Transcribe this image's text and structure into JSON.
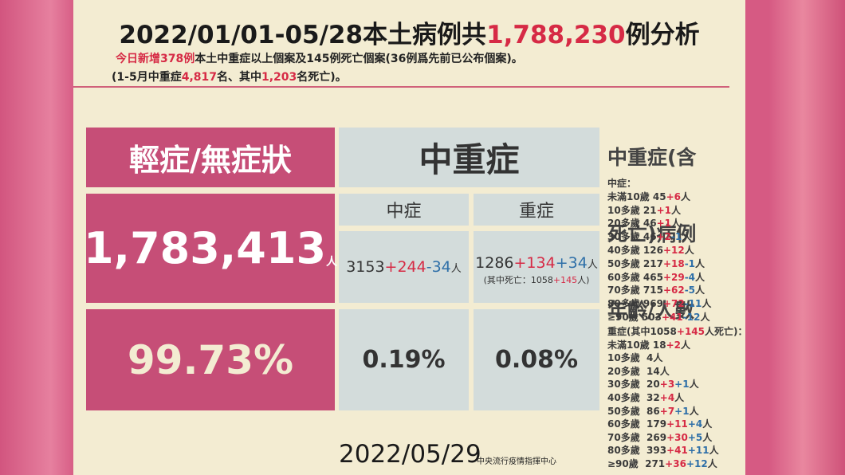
{
  "title": [
    {
      "text": "2022/01/01-05/28本土病例共"
    },
    {
      "text": "1,788,230",
      "color": "red"
    },
    {
      "text": "例分析"
    }
  ],
  "subtitle": [
    [
      {
        "text": "今日新增378例",
        "color": "red"
      },
      {
        "text": "本土中重症以上個案及145例死亡個案(36例爲先前已公布個案)。"
      }
    ],
    [
      {
        "text": "(1-5月中重症"
      },
      {
        "text": "4,817",
        "color": "red"
      },
      {
        "text": "名、其中"
      },
      {
        "text": "1,203",
        "color": "red"
      },
      {
        "text": "名死亡)。"
      }
    ]
  ],
  "table": {
    "mild_header": "輕症/無症狀",
    "mild_count": "1,783,413",
    "mild_unit": "人",
    "mild_pct": "99.73%",
    "severe_header": "中重症",
    "moderate_sub": "中症",
    "critical_sub": "重症",
    "moderate_count": [
      {
        "text": "3153"
      },
      {
        "text": "+244",
        "color": "red"
      },
      {
        "text": "-34",
        "color": "blue"
      },
      {
        "text": "人",
        "color": "small"
      }
    ],
    "critical_count": [
      {
        "text": "1286"
      },
      {
        "text": "+134",
        "color": "red"
      },
      {
        "text": "+34",
        "color": "blue"
      },
      {
        "text": "人",
        "color": "small"
      }
    ],
    "critical_note": [
      {
        "text": "(其中死亡：1058"
      },
      {
        "text": "+145",
        "color": "red"
      },
      {
        "text": "人)"
      }
    ],
    "moderate_pct": "0.19%",
    "critical_pct": "0.08%"
  },
  "side": {
    "heading": [
      "中重症(含",
      "死亡)病例",
      "年齡/人數"
    ],
    "moderate_label": [
      {
        "text": "中症："
      }
    ],
    "moderate_rows": [
      [
        {
          "text": "未滿10歲 45"
        },
        {
          "text": "+6",
          "color": "red"
        },
        {
          "text": "人"
        }
      ],
      [
        {
          "text": "10多歲 21"
        },
        {
          "text": "+1",
          "color": "red"
        },
        {
          "text": "人"
        }
      ],
      [
        {
          "text": "20多歲 46"
        },
        {
          "text": "+1",
          "color": "red"
        },
        {
          "text": "人"
        }
      ],
      [
        {
          "text": "30多歲 46"
        },
        {
          "text": "+2",
          "color": "red"
        },
        {
          "text": "-1",
          "color": "blue"
        },
        {
          "text": "人"
        }
      ],
      [
        {
          "text": "40多歲 126"
        },
        {
          "text": "+12",
          "color": "red"
        },
        {
          "text": "人"
        }
      ],
      [
        {
          "text": "50多歲 217"
        },
        {
          "text": "+18",
          "color": "red"
        },
        {
          "text": "-1",
          "color": "blue"
        },
        {
          "text": "人"
        }
      ],
      [
        {
          "text": "60多歲 465"
        },
        {
          "text": "+29",
          "color": "red"
        },
        {
          "text": "-4",
          "color": "blue"
        },
        {
          "text": "人"
        }
      ],
      [
        {
          "text": "70多歲 715"
        },
        {
          "text": "+62",
          "color": "red"
        },
        {
          "text": "-5",
          "color": "blue"
        },
        {
          "text": "人"
        }
      ],
      [
        {
          "text": "80多歲 969"
        },
        {
          "text": "+72",
          "color": "red"
        },
        {
          "text": "-11",
          "color": "blue"
        },
        {
          "text": "人"
        }
      ],
      [
        {
          "text": "≥90歲 503"
        },
        {
          "text": "+41",
          "color": "red"
        },
        {
          "text": "-12",
          "color": "blue"
        },
        {
          "text": "人"
        }
      ]
    ],
    "critical_label": [
      {
        "text": "重症(其中1058"
      },
      {
        "text": "+145",
        "color": "red"
      },
      {
        "text": "人死亡)："
      }
    ],
    "critical_rows": [
      [
        {
          "text": "未滿10歲 18"
        },
        {
          "text": "+2",
          "color": "red"
        },
        {
          "text": "人"
        }
      ],
      [
        {
          "text": "10多歲  4人"
        }
      ],
      [
        {
          "text": "20多歲  14人"
        }
      ],
      [
        {
          "text": "30多歲  20"
        },
        {
          "text": "+3",
          "color": "red"
        },
        {
          "text": "+1",
          "color": "blue"
        },
        {
          "text": "人"
        }
      ],
      [
        {
          "text": "40多歲  32"
        },
        {
          "text": "+4",
          "color": "red"
        },
        {
          "text": "人"
        }
      ],
      [
        {
          "text": "50多歲  86"
        },
        {
          "text": "+7",
          "color": "red"
        },
        {
          "text": "+1",
          "color": "blue"
        },
        {
          "text": "人"
        }
      ],
      [
        {
          "text": "60多歲  179"
        },
        {
          "text": "+11",
          "color": "red"
        },
        {
          "text": "+4",
          "color": "blue"
        },
        {
          "text": "人"
        }
      ],
      [
        {
          "text": "70多歲  269"
        },
        {
          "text": "+30",
          "color": "red"
        },
        {
          "text": "+5",
          "color": "blue"
        },
        {
          "text": "人"
        }
      ],
      [
        {
          "text": "80多歲  393"
        },
        {
          "text": "+41",
          "color": "red"
        },
        {
          "text": "+11",
          "color": "blue"
        },
        {
          "text": "人"
        }
      ],
      [
        {
          "text": "≥90歲  271"
        },
        {
          "text": "+36",
          "color": "red"
        },
        {
          "text": "+12",
          "color": "blue"
        },
        {
          "text": "人"
        }
      ]
    ]
  },
  "footer": {
    "date": "2022/05/29",
    "source": "中央流行疫情指揮中心"
  }
}
